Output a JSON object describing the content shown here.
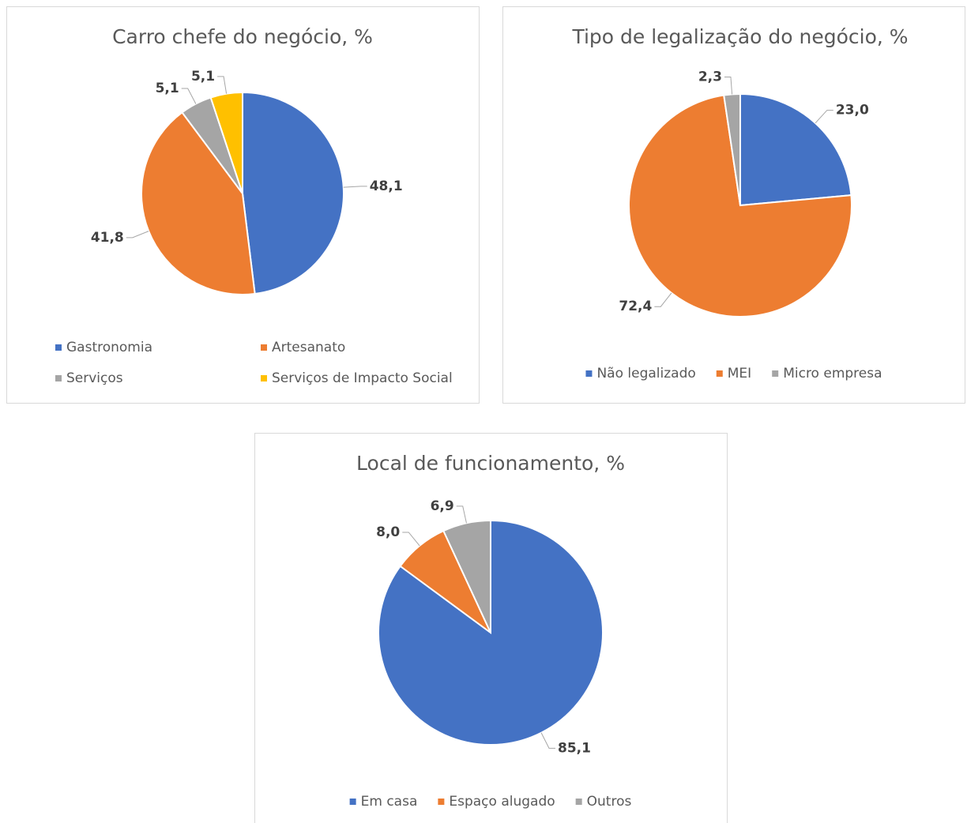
{
  "chart_data": [
    {
      "type": "pie",
      "title": "Carro chefe do negócio, %",
      "categories": [
        "Gastronomia",
        "Artesanato",
        "Serviços",
        "Serviços de Impacto Social"
      ],
      "values": [
        48.1,
        41.8,
        5.1,
        5.1
      ],
      "value_labels": [
        "48,1",
        "41,8",
        "5,1",
        "5,1"
      ],
      "colors": [
        "#4472c4",
        "#ed7d31",
        "#a5a5a5",
        "#ffc000"
      ],
      "legend": "bottom"
    },
    {
      "type": "pie",
      "title": "Tipo de legalização do negócio, %",
      "categories": [
        "Não legalizado",
        "MEI",
        "Micro empresa"
      ],
      "values": [
        23.0,
        72.4,
        2.3
      ],
      "value_labels": [
        "23,0",
        "72,4",
        "2,3"
      ],
      "colors": [
        "#4472c4",
        "#ed7d31",
        "#a5a5a5"
      ],
      "legend": "bottom"
    },
    {
      "type": "pie",
      "title": "Local de funcionamento, %",
      "categories": [
        "Em casa",
        "Espaço alugado",
        "Outros"
      ],
      "values": [
        85.1,
        8.0,
        6.9
      ],
      "value_labels": [
        "85,1",
        "8,0",
        "6,9"
      ],
      "colors": [
        "#4472c4",
        "#ed7d31",
        "#a5a5a5"
      ],
      "legend": "bottom"
    }
  ]
}
